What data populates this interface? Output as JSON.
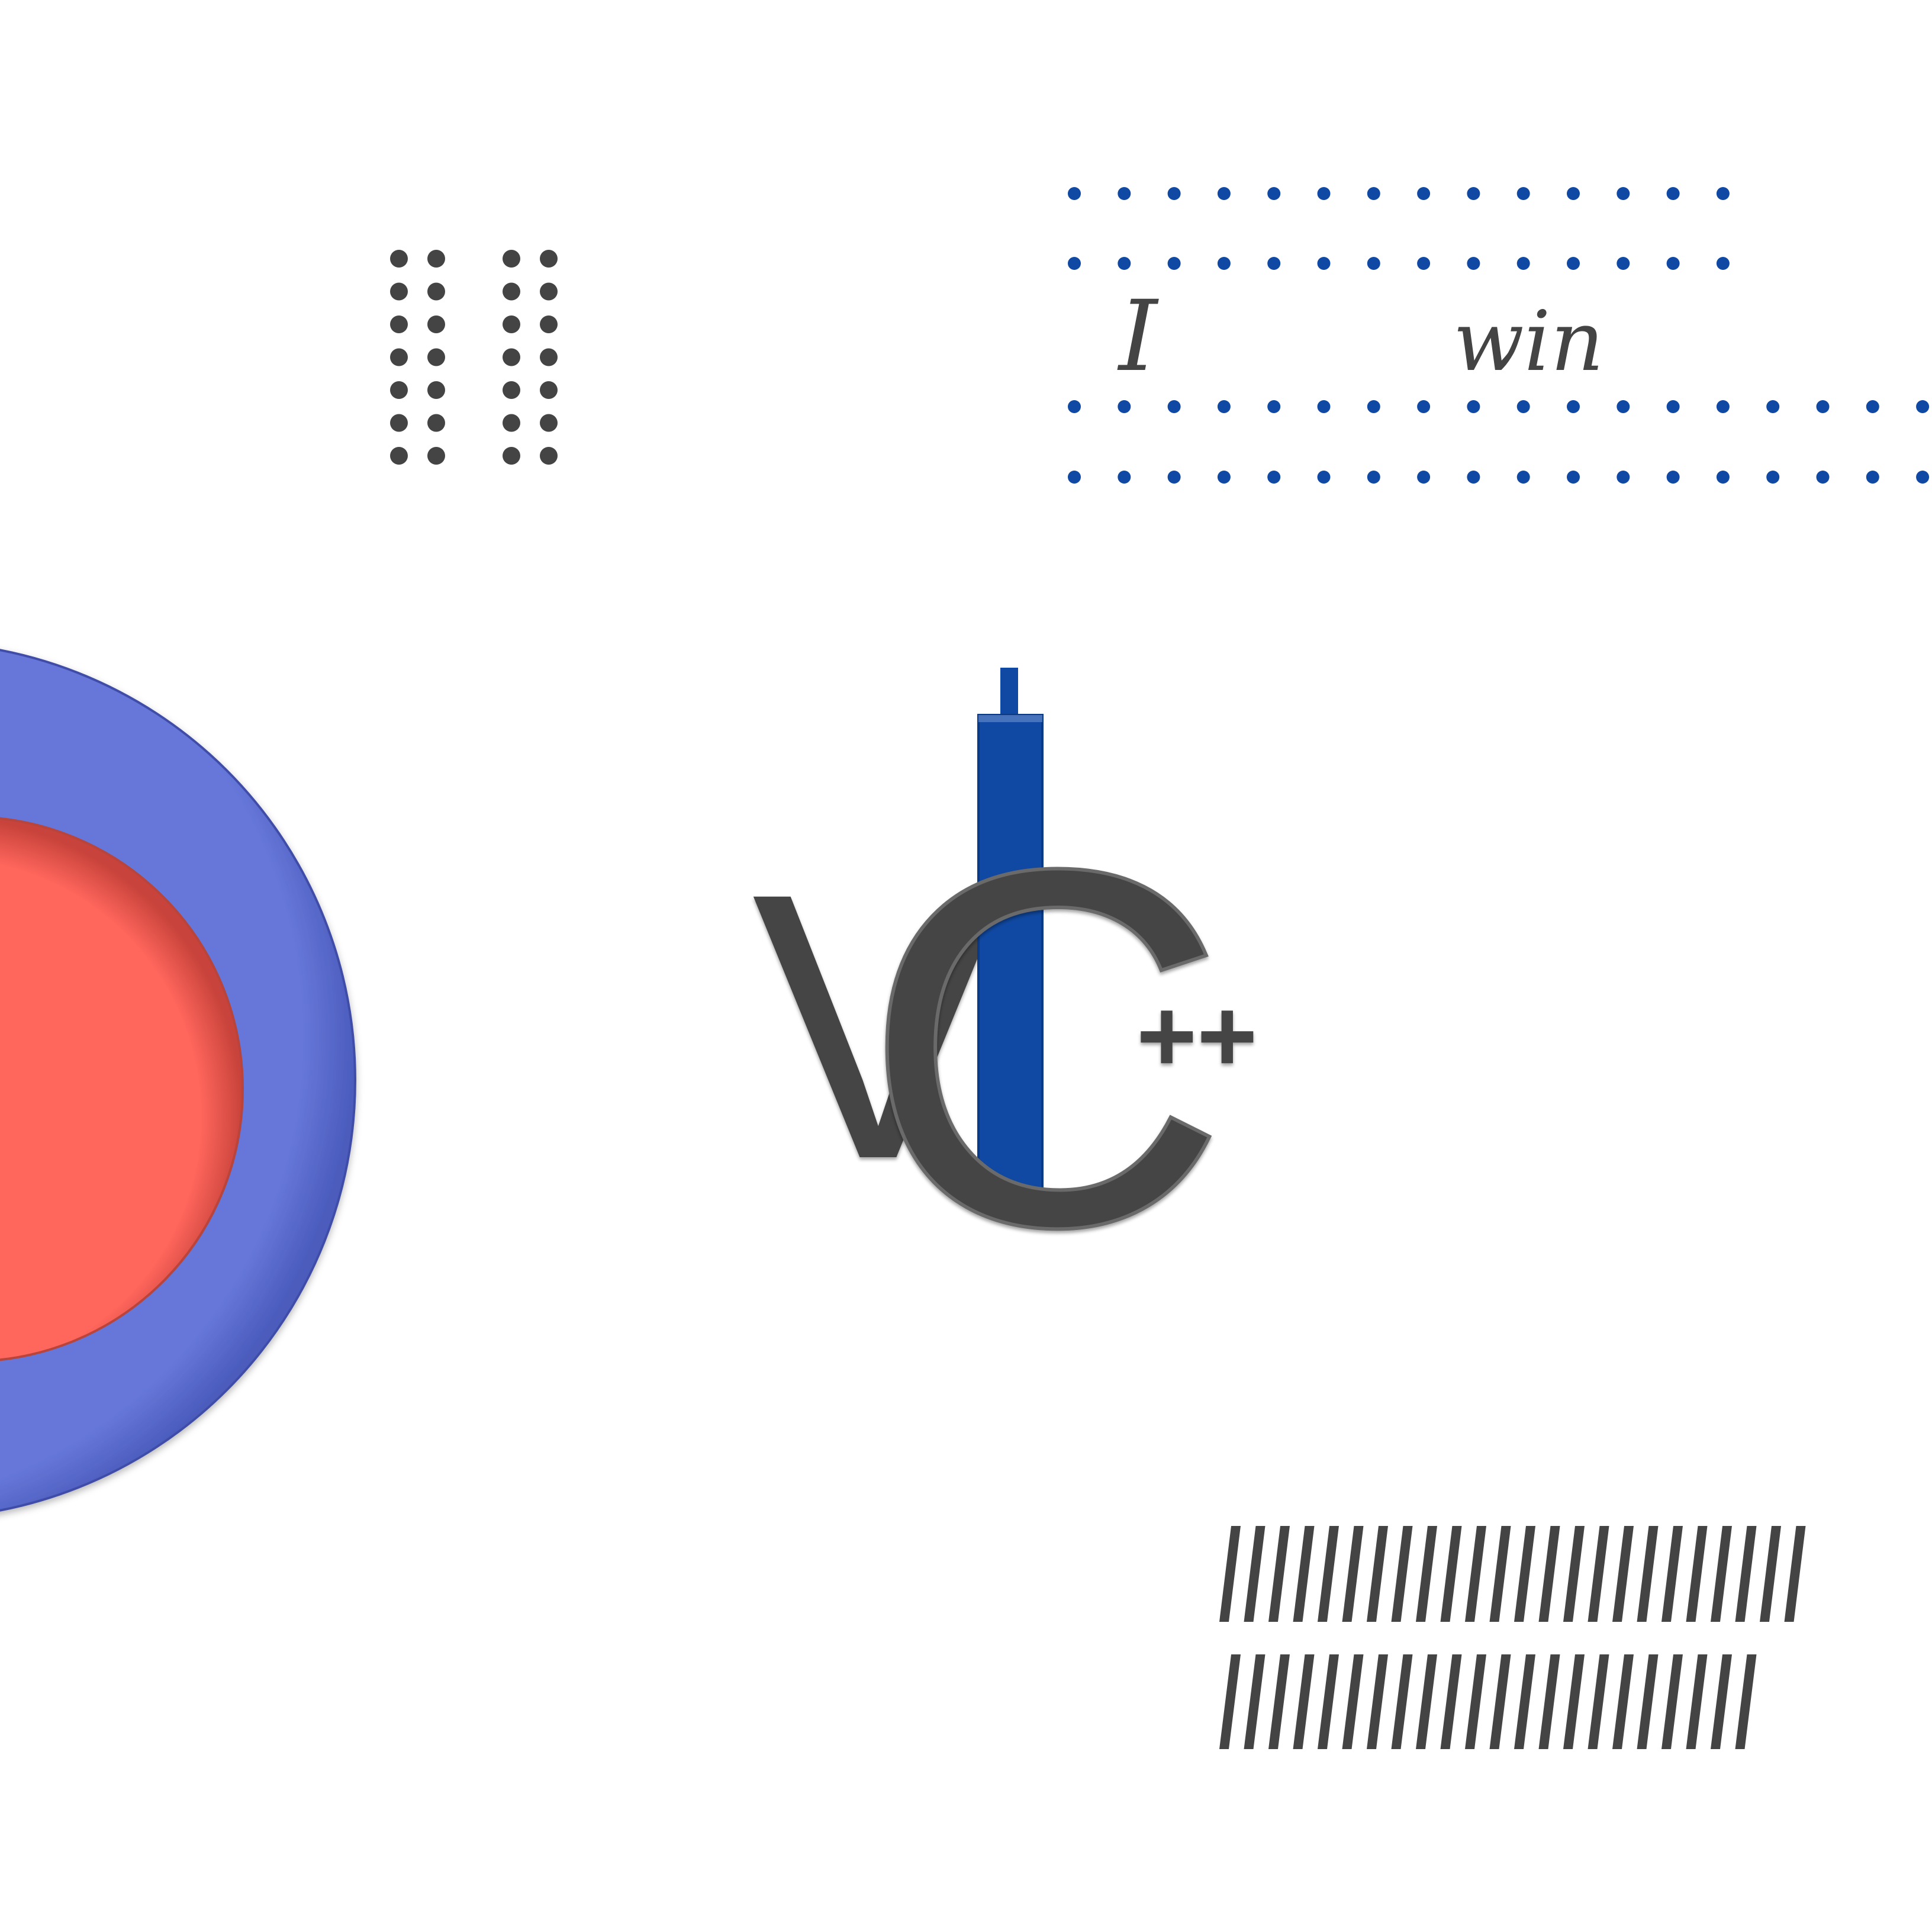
{
  "colors": {
    "background": "#ffffff",
    "outer_ring": "#6677d9",
    "inner_circle": "#ff665c",
    "dark_gray": "#444444",
    "blue_bar": "#1049a3",
    "blue_dots": "#1049a3",
    "script_text": "#444444"
  },
  "decor": {
    "dots_grid_icon": "dots-grid",
    "blue_dots_icon": "dotted-lines",
    "hatch_icon": "diagonal-hatch-lines"
  },
  "banner": {
    "word_left": "I",
    "word_right": "win"
  },
  "logo": {
    "letter_v": "V",
    "letter_c": "C",
    "superscript": "++"
  }
}
